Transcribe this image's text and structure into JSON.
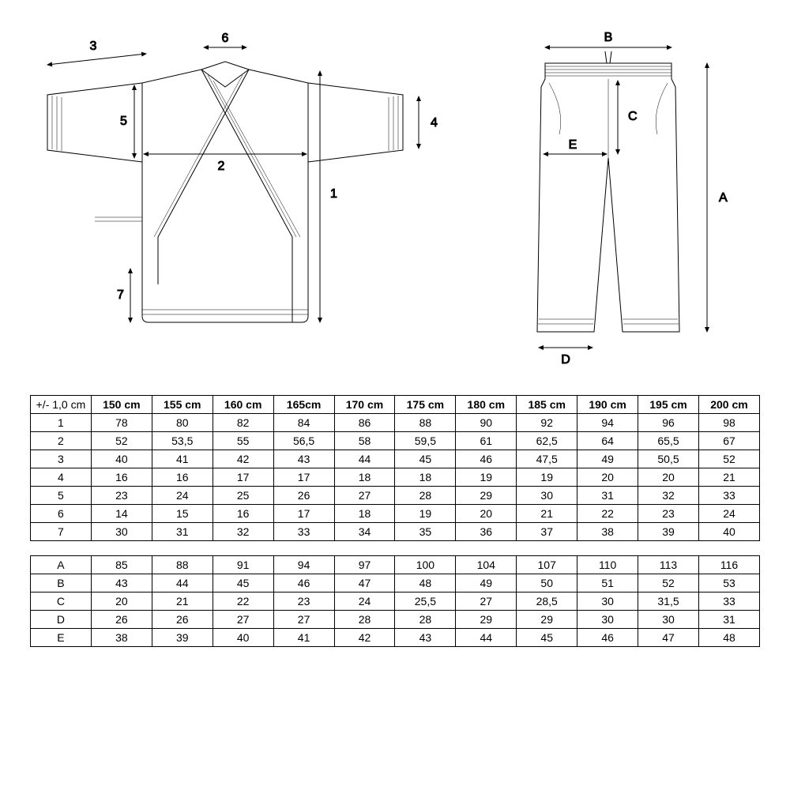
{
  "table1": {
    "corner": "+/- 1,0 cm",
    "columns": [
      "150 cm",
      "155 cm",
      "160 cm",
      "165cm",
      "170 cm",
      "175 cm",
      "180 cm",
      "185 cm",
      "190 cm",
      "195 cm",
      "200 cm"
    ],
    "rows": [
      {
        "label": "1",
        "values": [
          "78",
          "80",
          "82",
          "84",
          "86",
          "88",
          "90",
          "92",
          "94",
          "96",
          "98"
        ]
      },
      {
        "label": "2",
        "values": [
          "52",
          "53,5",
          "55",
          "56,5",
          "58",
          "59,5",
          "61",
          "62,5",
          "64",
          "65,5",
          "67"
        ]
      },
      {
        "label": "3",
        "values": [
          "40",
          "41",
          "42",
          "43",
          "44",
          "45",
          "46",
          "47,5",
          "49",
          "50,5",
          "52"
        ]
      },
      {
        "label": "4",
        "values": [
          "16",
          "16",
          "17",
          "17",
          "18",
          "18",
          "19",
          "19",
          "20",
          "20",
          "21"
        ]
      },
      {
        "label": "5",
        "values": [
          "23",
          "24",
          "25",
          "26",
          "27",
          "28",
          "29",
          "30",
          "31",
          "32",
          "33"
        ]
      },
      {
        "label": "6",
        "values": [
          "14",
          "15",
          "16",
          "17",
          "18",
          "19",
          "20",
          "21",
          "22",
          "23",
          "24"
        ]
      },
      {
        "label": "7",
        "values": [
          "30",
          "31",
          "32",
          "33",
          "34",
          "35",
          "36",
          "37",
          "38",
          "39",
          "40"
        ]
      }
    ]
  },
  "table2": {
    "rows": [
      {
        "label": "A",
        "values": [
          "85",
          "88",
          "91",
          "94",
          "97",
          "100",
          "104",
          "107",
          "110",
          "113",
          "116"
        ]
      },
      {
        "label": "B",
        "values": [
          "43",
          "44",
          "45",
          "46",
          "47",
          "48",
          "49",
          "50",
          "51",
          "52",
          "53"
        ]
      },
      {
        "label": "C",
        "values": [
          "20",
          "21",
          "22",
          "23",
          "24",
          "25,5",
          "27",
          "28,5",
          "30",
          "31,5",
          "33"
        ]
      },
      {
        "label": "D",
        "values": [
          "26",
          "26",
          "27",
          "27",
          "28",
          "28",
          "29",
          "29",
          "30",
          "30",
          "31"
        ]
      },
      {
        "label": "E",
        "values": [
          "38",
          "39",
          "40",
          "41",
          "42",
          "43",
          "44",
          "45",
          "46",
          "47",
          "48"
        ]
      }
    ]
  },
  "labels": {
    "jacket": {
      "l1": "1",
      "l2": "2",
      "l3": "3",
      "l4": "4",
      "l5": "5",
      "l6": "6",
      "l7": "7"
    },
    "pants": {
      "A": "A",
      "B": "B",
      "C": "C",
      "D": "D",
      "E": "E"
    }
  },
  "style": {
    "stroke": "#000000",
    "stroke_width": 1,
    "stroke_width_light": 0.5,
    "font_size_diagram": 16,
    "font_size_table": 14,
    "background": "#ffffff"
  }
}
